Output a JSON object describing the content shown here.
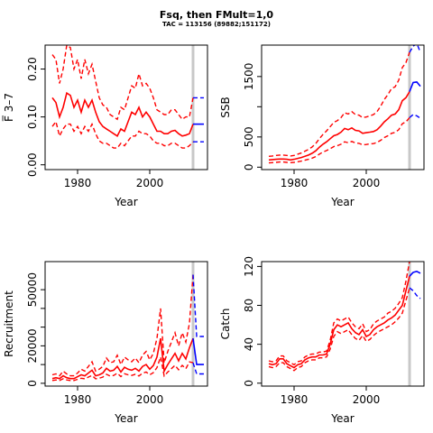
{
  "title": "Fsq, then FMult=1,0",
  "subtitle": "TAC = 113156 (89882;151172)",
  "colors": {
    "hist": "#ff0000",
    "proj": "#0000ff",
    "marker": "#c8c8c8"
  },
  "chart_data": [
    {
      "type": "line",
      "name": "F",
      "xlabel": "Year",
      "ylabel": "F̅ 3–7",
      "xlim": [
        1971,
        2016
      ],
      "ylim": [
        -0.01,
        0.25
      ],
      "xticks": [
        1980,
        2000
      ],
      "yticks": [
        0.0,
        0.1,
        0.2
      ],
      "ytick_labels": [
        "0.00",
        "0.10",
        "0.20"
      ],
      "marker_year": 2012,
      "hist": {
        "x": [
          1973,
          1974,
          1975,
          1976,
          1977,
          1978,
          1979,
          1980,
          1981,
          1982,
          1983,
          1984,
          1985,
          1986,
          1987,
          1988,
          1989,
          1990,
          1991,
          1992,
          1993,
          1994,
          1995,
          1996,
          1997,
          1998,
          1999,
          2000,
          2001,
          2002,
          2003,
          2004,
          2005,
          2006,
          2007,
          2008,
          2009,
          2010,
          2011,
          2012
        ],
        "mid": [
          0.14,
          0.13,
          0.1,
          0.12,
          0.15,
          0.145,
          0.12,
          0.135,
          0.11,
          0.135,
          0.12,
          0.135,
          0.11,
          0.09,
          0.08,
          0.075,
          0.07,
          0.065,
          0.06,
          0.075,
          0.07,
          0.09,
          0.11,
          0.105,
          0.12,
          0.1,
          0.11,
          0.1,
          0.085,
          0.07,
          0.07,
          0.065,
          0.065,
          0.07,
          0.072,
          0.065,
          0.06,
          0.062,
          0.065,
          0.085
        ],
        "upper": [
          0.23,
          0.22,
          0.17,
          0.2,
          0.25,
          0.245,
          0.2,
          0.22,
          0.18,
          0.22,
          0.19,
          0.21,
          0.175,
          0.14,
          0.125,
          0.12,
          0.105,
          0.1,
          0.095,
          0.12,
          0.115,
          0.14,
          0.165,
          0.16,
          0.19,
          0.165,
          0.17,
          0.16,
          0.14,
          0.115,
          0.11,
          0.105,
          0.105,
          0.115,
          0.115,
          0.105,
          0.095,
          0.1,
          0.1,
          0.14
        ],
        "lower": [
          0.08,
          0.09,
          0.06,
          0.075,
          0.085,
          0.085,
          0.07,
          0.08,
          0.065,
          0.08,
          0.07,
          0.085,
          0.065,
          0.05,
          0.045,
          0.045,
          0.04,
          0.035,
          0.035,
          0.045,
          0.04,
          0.05,
          0.06,
          0.06,
          0.07,
          0.065,
          0.065,
          0.06,
          0.05,
          0.045,
          0.045,
          0.04,
          0.04,
          0.045,
          0.045,
          0.04,
          0.035,
          0.035,
          0.04,
          0.048
        ]
      },
      "proj": {
        "x": [
          2012,
          2013,
          2014,
          2015
        ],
        "mid": [
          0.085,
          0.085,
          0.085,
          0.085
        ],
        "upper": [
          0.14,
          0.14,
          0.14,
          0.14
        ],
        "lower": [
          0.048,
          0.048,
          0.048,
          0.048
        ]
      }
    },
    {
      "type": "line",
      "name": "SSB",
      "xlabel": "Year",
      "ylabel": "SSB",
      "xlim": [
        1971,
        2016
      ],
      "ylim": [
        -40,
        2020
      ],
      "xticks": [
        1980,
        2000
      ],
      "yticks": [
        0,
        500,
        1000,
        1500
      ],
      "ytick_labels": [
        "0",
        "500",
        "",
        "1500"
      ],
      "marker_year": 2012,
      "hist": {
        "x": [
          1973,
          1974,
          1975,
          1976,
          1977,
          1978,
          1979,
          1980,
          1981,
          1982,
          1983,
          1984,
          1985,
          1986,
          1987,
          1988,
          1989,
          1990,
          1991,
          1992,
          1993,
          1994,
          1995,
          1996,
          1997,
          1998,
          1999,
          2000,
          2001,
          2002,
          2003,
          2004,
          2005,
          2006,
          2007,
          2008,
          2009,
          2010,
          2011,
          2012
        ],
        "mid": [
          120,
          125,
          130,
          135,
          135,
          130,
          120,
          130,
          145,
          160,
          180,
          200,
          230,
          270,
          330,
          380,
          420,
          470,
          520,
          540,
          580,
          640,
          620,
          650,
          610,
          600,
          560,
          570,
          580,
          590,
          620,
          680,
          750,
          800,
          860,
          880,
          950,
          1100,
          1150,
          1250
        ],
        "upper": [
          180,
          185,
          195,
          200,
          200,
          195,
          185,
          195,
          215,
          235,
          265,
          295,
          335,
          390,
          470,
          540,
          600,
          670,
          740,
          770,
          820,
          900,
          880,
          920,
          870,
          860,
          820,
          830,
          850,
          870,
          920,
          1010,
          1120,
          1200,
          1300,
          1330,
          1440,
          1650,
          1730,
          1900
        ],
        "lower": [
          70,
          75,
          80,
          85,
          85,
          80,
          75,
          80,
          90,
          100,
          115,
          130,
          150,
          175,
          215,
          250,
          275,
          305,
          340,
          355,
          380,
          420,
          405,
          425,
          400,
          395,
          370,
          375,
          385,
          390,
          410,
          445,
          490,
          520,
          560,
          575,
          620,
          720,
          750,
          820
        ]
      },
      "proj": {
        "x": [
          2012,
          2013,
          2014,
          2015
        ],
        "mid": [
          1250,
          1400,
          1410,
          1340
        ],
        "upper": [
          1900,
          2000,
          2050,
          1900
        ],
        "lower": [
          820,
          870,
          850,
          810
        ]
      }
    },
    {
      "type": "line",
      "name": "Recruitment",
      "xlabel": "Year",
      "ylabel": "Recruitment",
      "xlim": [
        1971,
        2016
      ],
      "ylim": [
        -1500,
        65000
      ],
      "xticks": [
        1980,
        2000
      ],
      "yticks": [
        0,
        10000,
        20000,
        30000,
        40000,
        50000
      ],
      "ytick_labels": [
        "0",
        "",
        "20000",
        "",
        "",
        "50000"
      ],
      "marker_year": 2012,
      "hist": {
        "x": [
          1973,
          1974,
          1975,
          1976,
          1977,
          1978,
          1979,
          1980,
          1981,
          1982,
          1983,
          1984,
          1985,
          1986,
          1987,
          1988,
          1989,
          1990,
          1991,
          1992,
          1993,
          1994,
          1995,
          1996,
          1997,
          1998,
          1999,
          2000,
          2001,
          2002,
          2003,
          2004,
          2005,
          2006,
          2007,
          2008,
          2009,
          2010,
          2011,
          2012
        ],
        "mid": [
          2500,
          3000,
          2500,
          4000,
          3000,
          2500,
          2500,
          3500,
          4500,
          4000,
          5500,
          7000,
          4000,
          4500,
          5500,
          8000,
          6500,
          7000,
          9000,
          6000,
          8500,
          7500,
          7000,
          8000,
          6500,
          9000,
          10000,
          7500,
          9500,
          14000,
          24000,
          6500,
          10000,
          13000,
          16000,
          12000,
          16000,
          13000,
          19000,
          24000
        ],
        "upper": [
          4500,
          5000,
          4000,
          6500,
          5000,
          4000,
          4000,
          5500,
          7500,
          6500,
          9000,
          11500,
          6500,
          7500,
          9000,
          13500,
          11000,
          11500,
          15000,
          10000,
          14000,
          12500,
          11500,
          13500,
          11000,
          15000,
          17000,
          12500,
          16000,
          24000,
          40000,
          11000,
          17000,
          22000,
          27000,
          20000,
          27000,
          22000,
          32000,
          58000
        ],
        "lower": [
          1500,
          1800,
          1500,
          2400,
          1800,
          1500,
          1500,
          2100,
          2700,
          2400,
          3300,
          4200,
          2400,
          2700,
          3300,
          4800,
          3900,
          4200,
          5400,
          3600,
          5100,
          4500,
          4200,
          4800,
          3900,
          5400,
          6000,
          4500,
          5700,
          8400,
          14000,
          3900,
          6000,
          7800,
          9600,
          7200,
          9600,
          7800,
          11400,
          11000
        ]
      },
      "proj": {
        "x": [
          2012,
          2013,
          2014,
          2015
        ],
        "mid": [
          24000,
          10000,
          10000,
          10000
        ],
        "upper": [
          58000,
          25000,
          25000,
          25000
        ],
        "lower": [
          11000,
          5000,
          5000,
          5000
        ]
      }
    },
    {
      "type": "line",
      "name": "Catch",
      "xlabel": "Year",
      "ylabel": "Catch",
      "xlim": [
        1971,
        2016
      ],
      "ylim": [
        -3,
        125
      ],
      "xticks": [
        1980,
        2000
      ],
      "yticks": [
        0,
        40,
        80,
        120
      ],
      "ytick_labels": [
        "0",
        "40",
        "80",
        "120"
      ],
      "marker_year": 2012,
      "hist": {
        "x": [
          1973,
          1974,
          1975,
          1976,
          1977,
          1978,
          1979,
          1980,
          1981,
          1982,
          1983,
          1984,
          1985,
          1986,
          1987,
          1988,
          1989,
          1990,
          1991,
          1992,
          1993,
          1994,
          1995,
          1996,
          1997,
          1998,
          1999,
          2000,
          2001,
          2002,
          2003,
          2004,
          2005,
          2006,
          2007,
          2008,
          2009,
          2010,
          2011,
          2012
        ],
        "mid": [
          20,
          19,
          20,
          25,
          25,
          20,
          18,
          16,
          19,
          20,
          24,
          26,
          27,
          27,
          29,
          29,
          30,
          40,
          55,
          60,
          58,
          60,
          62,
          56,
          52,
          50,
          55,
          48,
          50,
          55,
          58,
          60,
          62,
          65,
          67,
          70,
          75,
          80,
          95,
          110
        ],
        "upper": [
          23,
          22,
          23,
          28,
          28,
          23,
          21,
          19,
          22,
          23,
          27,
          29,
          30,
          30,
          32,
          32,
          33,
          44,
          62,
          66,
          64,
          66,
          68,
          62,
          58,
          56,
          61,
          53,
          55,
          61,
          64,
          66,
          68,
          72,
          74,
          77,
          82,
          88,
          105,
          125
        ],
        "lower": [
          17,
          16,
          17,
          21,
          21,
          17,
          15,
          13,
          16,
          17,
          21,
          23,
          24,
          24,
          26,
          26,
          27,
          35,
          48,
          53,
          51,
          53,
          55,
          50,
          46,
          44,
          49,
          43,
          45,
          49,
          52,
          54,
          56,
          58,
          60,
          63,
          67,
          72,
          85,
          98
        ]
      },
      "proj": {
        "x": [
          2012,
          2013,
          2014,
          2015
        ],
        "mid": [
          110,
          114,
          115,
          113
        ],
        "upper": [
          125,
          130,
          130,
          128
        ],
        "lower": [
          98,
          95,
          90,
          87
        ]
      }
    }
  ]
}
